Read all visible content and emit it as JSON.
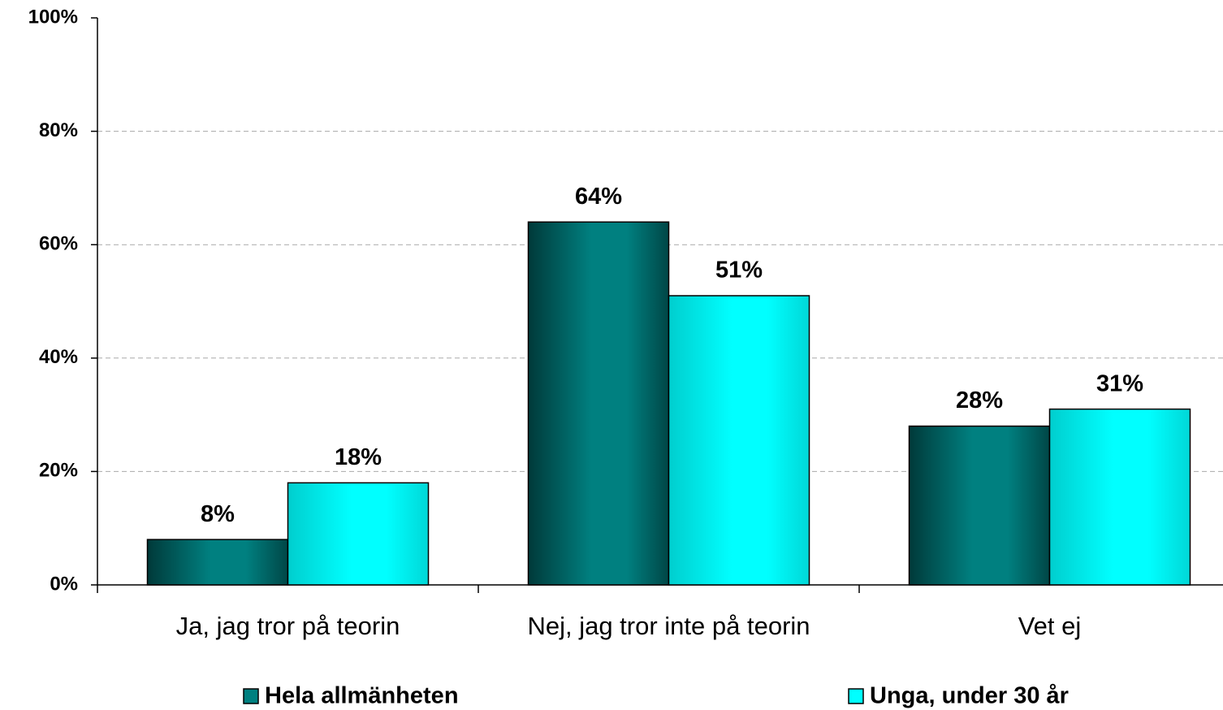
{
  "chart_data": {
    "type": "bar",
    "categories": [
      "Ja, jag tror på teorin",
      "Nej, jag tror inte på teorin",
      "Vet ej"
    ],
    "series": [
      {
        "name": "Hela allmänheten",
        "color": "#008080",
        "values": [
          8,
          64,
          28
        ],
        "value_labels": [
          "8%",
          "64%",
          "28%"
        ]
      },
      {
        "name": "Unga, under 30 år",
        "color": "#00ffff",
        "values": [
          18,
          51,
          31
        ],
        "value_labels": [
          "18%",
          "51%",
          "31%"
        ]
      }
    ],
    "ylim": [
      0,
      100
    ],
    "yticks": [
      {
        "value": 0,
        "label": "0%"
      },
      {
        "value": 20,
        "label": "20%"
      },
      {
        "value": 40,
        "label": "40%"
      },
      {
        "value": 60,
        "label": "60%"
      },
      {
        "value": 80,
        "label": "80%"
      },
      {
        "value": 100,
        "label": "100%"
      }
    ],
    "grid": true,
    "legend": "bottom"
  }
}
